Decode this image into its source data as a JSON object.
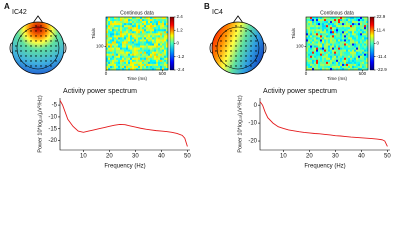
{
  "chart_data": [
    {
      "type": "line",
      "title": "Activity power spectrum",
      "xlabel": "Frequency (Hz)",
      "ylabel": "Power 10*log₁₀(µV²/Hz)",
      "x": [
        1,
        2,
        3,
        4,
        6,
        8,
        10,
        12,
        14,
        16,
        18,
        20,
        22,
        24,
        26,
        28,
        30,
        32,
        34,
        36,
        38,
        40,
        42,
        44,
        46,
        48,
        49,
        50
      ],
      "series": [
        {
          "color": "#e41a1c",
          "values": [
            -3,
            -5,
            -8,
            -11,
            -14,
            -16,
            -16.5,
            -16,
            -15.5,
            -15,
            -14.5,
            -14,
            -13.5,
            -13.2,
            -13.3,
            -13.8,
            -14.3,
            -14.8,
            -15.2,
            -15.5,
            -15.8,
            -16,
            -16.2,
            -16.5,
            -17,
            -17.8,
            -19,
            -22.5
          ]
        }
      ],
      "xlim": [
        1,
        51
      ],
      "xticks": [
        10,
        20,
        30,
        40,
        50
      ],
      "ylim": [
        -24,
        -2
      ],
      "yticks": [
        -5,
        -10,
        -15,
        -20
      ]
    },
    {
      "type": "line",
      "title": "Activity power spectrum",
      "xlabel": "Frequency (Hz)",
      "ylabel": "Power 10*log₁₀(µV²/Hz)",
      "x": [
        1,
        2,
        3,
        4,
        6,
        8,
        10,
        12,
        14,
        16,
        18,
        20,
        22,
        24,
        26,
        28,
        30,
        32,
        34,
        36,
        38,
        40,
        42,
        44,
        46,
        48,
        49,
        50
      ],
      "series": [
        {
          "color": "#e41a1c",
          "values": [
            2,
            0,
            -4,
            -7,
            -10,
            -12,
            -13,
            -13.8,
            -14.3,
            -14.8,
            -15.2,
            -15.5,
            -15.8,
            -16,
            -16.3,
            -16.6,
            -17,
            -17.2,
            -17.5,
            -17.8,
            -18,
            -18.2,
            -18.4,
            -18.6,
            -18.9,
            -19.3,
            -20,
            -23
          ]
        }
      ],
      "xlim": [
        1,
        51
      ],
      "xticks": [
        10,
        20,
        30,
        40,
        50
      ],
      "ylim": [
        -25,
        4
      ],
      "yticks": [
        0,
        -10,
        -20
      ]
    }
  ],
  "panels": [
    {
      "label": "A",
      "component": "IC42",
      "image": {
        "title": "Continous data",
        "xlabel": "Time (ms)",
        "ylabel": "Trials",
        "xlim": [
          0,
          550
        ],
        "xticks": [
          0,
          500
        ],
        "ylim": [
          0,
          180
        ],
        "yticks": [
          100
        ],
        "colorbar_ticks": [
          2.4,
          1.2,
          0,
          -1.2,
          -2.4
        ]
      }
    },
    {
      "label": "B",
      "component": "IC4",
      "image": {
        "title": "Continous data",
        "xlabel": "Time (ms)",
        "ylabel": "Trials",
        "xlim": [
          0,
          550
        ],
        "xticks": [
          0,
          500
        ],
        "ylim": [
          0,
          180
        ],
        "yticks": [
          100
        ],
        "colorbar_ticks": [
          22.9,
          11.4,
          0,
          -11.4,
          -22.9
        ]
      }
    }
  ]
}
